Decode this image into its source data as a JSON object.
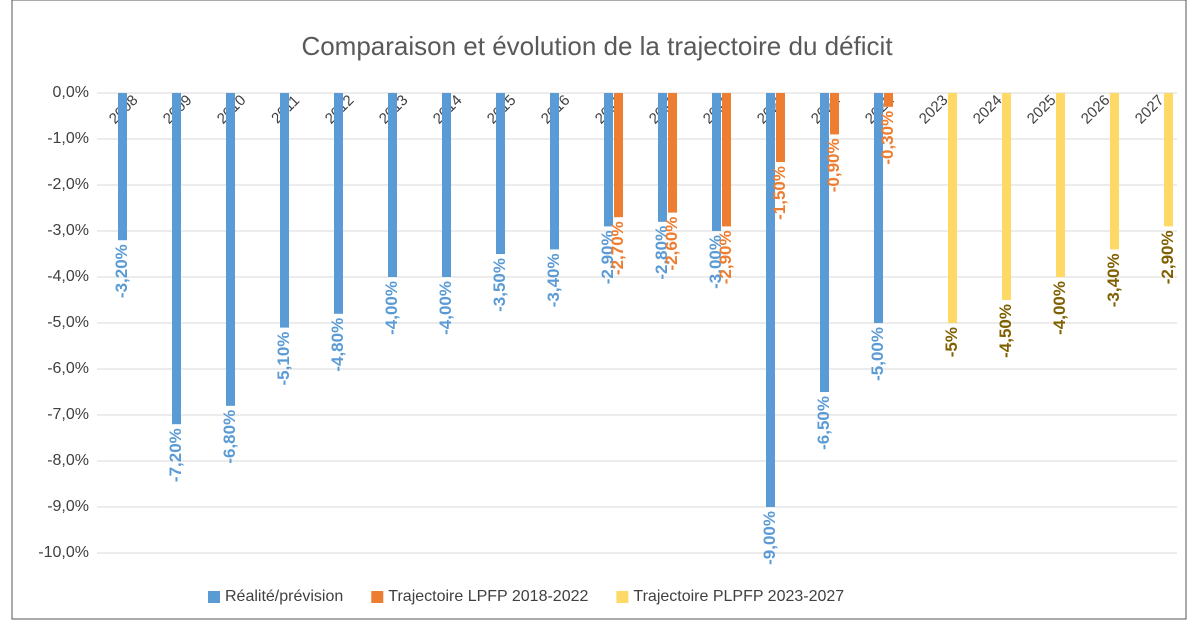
{
  "chart_data": {
    "type": "bar",
    "title": "Comparaison et évolution de la trajectoire du déficit",
    "categories": [
      "2008",
      "2009",
      "2010",
      "2011",
      "2012",
      "2013",
      "2014",
      "2015",
      "2016",
      "2017",
      "2018",
      "2019",
      "2020",
      "2021",
      "2022",
      "2023",
      "2024",
      "2025",
      "2026",
      "2027"
    ],
    "series": [
      {
        "name": "Réalité/prévision",
        "color": "#5b9bd5",
        "label_color": "#5b9bd5",
        "values": [
          -3.2,
          -7.2,
          -6.8,
          -5.1,
          -4.8,
          -4.0,
          -4.0,
          -3.5,
          -3.4,
          -2.9,
          -2.8,
          -3.0,
          -9.0,
          -6.5,
          -5.0,
          null,
          null,
          null,
          null,
          null
        ],
        "value_labels": [
          "-3,20%",
          "-7,20%",
          "-6,80%",
          "-5,10%",
          "-4,80%",
          "-4,00%",
          "-4,00%",
          "-3,50%",
          "-3,40%",
          "-2,90%",
          "-2,80%",
          "-3,00%",
          "-9,00%",
          "-6,50%",
          "-5,00%",
          null,
          null,
          null,
          null,
          null
        ]
      },
      {
        "name": "Trajectoire LPFP 2018-2022",
        "color": "#ed7d31",
        "label_color": "#ed7d31",
        "values": [
          null,
          null,
          null,
          null,
          null,
          null,
          null,
          null,
          null,
          -2.7,
          -2.6,
          -2.9,
          -1.5,
          -0.9,
          -0.3,
          null,
          null,
          null,
          null,
          null
        ],
        "value_labels": [
          null,
          null,
          null,
          null,
          null,
          null,
          null,
          null,
          null,
          "-2,70%",
          "-2,60%",
          "-2,90%",
          "-1,50%",
          "-0,90%",
          "-0,30%",
          null,
          null,
          null,
          null,
          null
        ]
      },
      {
        "name": "Trajectoire PLPFP 2023-2027",
        "color": "#ffd966",
        "label_color": "#7f6000",
        "values": [
          null,
          null,
          null,
          null,
          null,
          null,
          null,
          null,
          null,
          null,
          null,
          null,
          null,
          null,
          null,
          -5,
          -4.5,
          -4.0,
          -3.4,
          -2.9
        ],
        "value_labels": [
          null,
          null,
          null,
          null,
          null,
          null,
          null,
          null,
          null,
          null,
          null,
          null,
          null,
          null,
          null,
          "-5%",
          "-4,50%",
          "-4,00%",
          "-3,40%",
          "-2,90%"
        ]
      }
    ],
    "ylim": [
      -10,
      0
    ],
    "yticks": [
      {
        "value": 0,
        "label": "0,0%"
      },
      {
        "value": -1,
        "label": "-1,0%"
      },
      {
        "value": -2,
        "label": "-2,0%"
      },
      {
        "value": -3,
        "label": "-3,0%"
      },
      {
        "value": -4,
        "label": "-4,0%"
      },
      {
        "value": -5,
        "label": "-5,0%"
      },
      {
        "value": -6,
        "label": "-6,0%"
      },
      {
        "value": -7,
        "label": "-7,0%"
      },
      {
        "value": -8,
        "label": "-8,0%"
      },
      {
        "value": -9,
        "label": "-9,0%"
      },
      {
        "value": -10,
        "label": "-10,0%"
      }
    ],
    "grid": true,
    "legend": "bottom"
  }
}
